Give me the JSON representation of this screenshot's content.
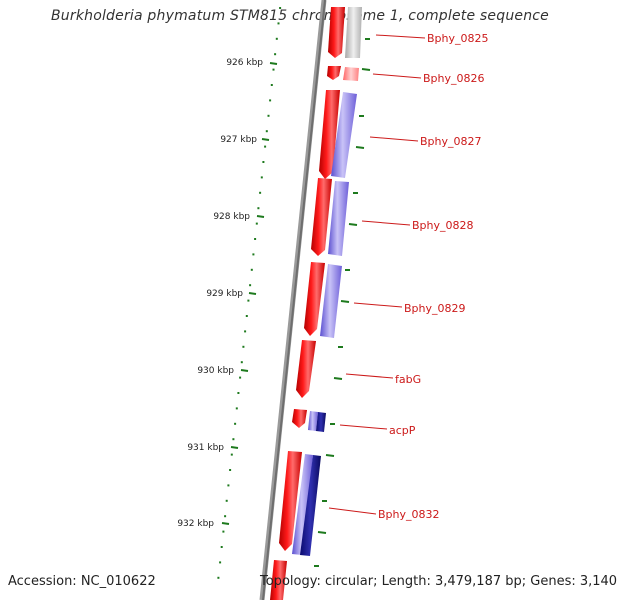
{
  "title": "Burkholderia phymatum STM815 chromosome 1, complete sequence",
  "footer": {
    "accession": "Accession: NC_010622",
    "summary": "Topology: circular; Length: 3,479,187 bp; Genes: 3,140"
  },
  "colors": {
    "ruler_ticks": "#1e7a1e",
    "backbone": "#7a7a7a",
    "forward_gene": "#e8141e",
    "reverse_gene_light": "#7f6fe0",
    "reverse_gene_dark": "#141482",
    "unknown_gene": "#c6c6c6",
    "label_text": "#cc1a1a"
  },
  "ruler": {
    "tick_labels": [
      "926 kbp",
      "927 kbp",
      "928 kbp",
      "929 kbp",
      "930 kbp",
      "931 kbp",
      "932 kbp"
    ]
  },
  "genes": [
    {
      "label": "Bphy_0825"
    },
    {
      "label": "Bphy_0826"
    },
    {
      "label": "Bphy_0827"
    },
    {
      "label": "Bphy_0828"
    },
    {
      "label": "Bphy_0829"
    },
    {
      "label": "fabG"
    },
    {
      "label": "acpP"
    },
    {
      "label": "Bphy_0832"
    }
  ]
}
